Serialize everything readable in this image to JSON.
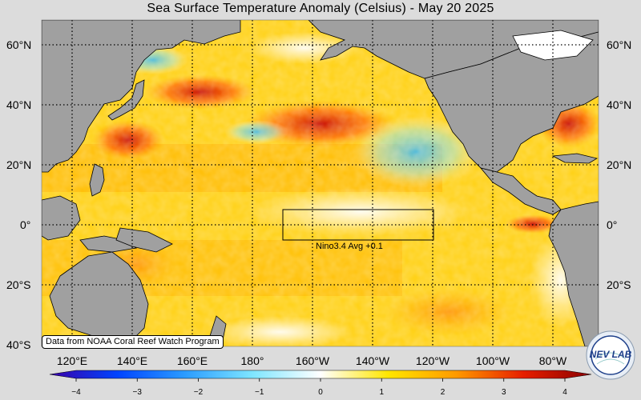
{
  "title": "Sea Surface Temperature Anomaly (Celsius) - May 20 2025",
  "lat_labels": [
    "60°N",
    "40°N",
    "20°N",
    "0°",
    "20°S",
    "40°S"
  ],
  "lon_labels": [
    "120°E",
    "140°E",
    "160°E",
    "180°",
    "160°W",
    "140°W",
    "120°W",
    "100°W",
    "80°W"
  ],
  "nino_box_label": "Nino3.4 Avg  +0.1",
  "credit": "Data from NOAA Coral Reef Watch Program",
  "logo_text": "NEV LAB",
  "colorbar": {
    "ticks": [
      "−4",
      "−3",
      "−2",
      "−1",
      "0",
      "1",
      "2",
      "3",
      "4"
    ],
    "colors": [
      "#3a00a8",
      "#0044ff",
      "#2b9cff",
      "#7fe6ff",
      "#ffffff",
      "#ffe600",
      "#ff9a00",
      "#e61e00",
      "#8a0000"
    ]
  },
  "colors": {
    "land": "#a0a0a0",
    "background": "#dcdcdc",
    "warm": "#ffb400",
    "hot": "#e02000",
    "cool": "#6fd8ff"
  }
}
